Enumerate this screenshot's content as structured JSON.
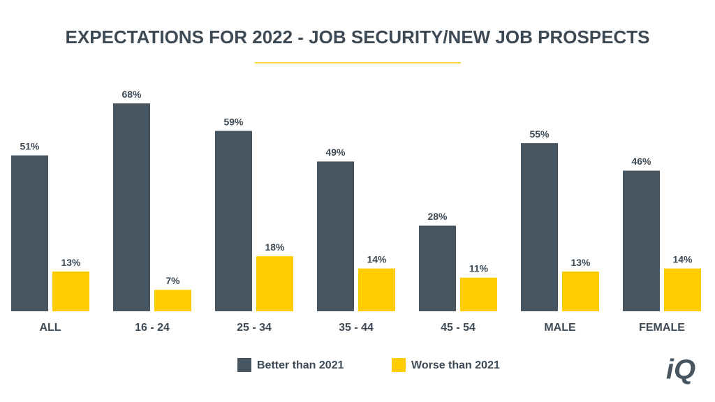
{
  "chart_data": {
    "type": "bar",
    "title": "EXPECTATIONS FOR 2022 - JOB SECURITY/NEW JOB PROSPECTS",
    "categories": [
      "ALL",
      "16 - 24",
      "25 - 34",
      "35 - 44",
      "45 - 54",
      "MALE",
      "FEMALE"
    ],
    "series": [
      {
        "name": "Better than 2021",
        "color": "#465560",
        "values": [
          51,
          68,
          59,
          49,
          28,
          55,
          46
        ],
        "value_labels": [
          "51%",
          "68%",
          "59%",
          "49%",
          "28%",
          "55%",
          "46%"
        ]
      },
      {
        "name": "Worse than 2021",
        "color": "#ffcc00",
        "values": [
          13,
          7,
          18,
          14,
          11,
          13,
          14
        ],
        "value_labels": [
          "13%",
          "7%",
          "18%",
          "14%",
          "11%",
          "13%",
          "14%"
        ]
      }
    ]
  },
  "logo": "iQ"
}
